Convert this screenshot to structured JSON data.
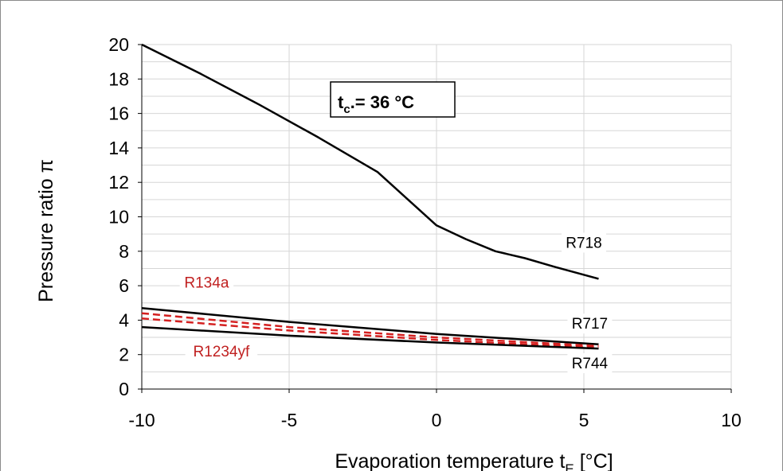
{
  "chart_data": {
    "type": "line",
    "annotation_box": {
      "main": "t",
      "subscript": "c",
      "suffix": ".= 36 °C"
    },
    "xlabel": {
      "main": "Evaporation temperature  t",
      "subscript": "E",
      "suffix": "  [°C]"
    },
    "ylabel": "Pressure ratio π",
    "xlim": [
      -10,
      10
    ],
    "ylim": [
      0,
      20
    ],
    "xticks": [
      -10,
      -5,
      0,
      5,
      10
    ],
    "yticks": [
      0,
      2,
      4,
      6,
      8,
      10,
      12,
      14,
      16,
      18,
      20
    ],
    "grid": true,
    "series": [
      {
        "name": "R718",
        "color": "#000000",
        "dashed": false,
        "points": [
          [
            -10,
            20.0
          ],
          [
            -8,
            18.3
          ],
          [
            -6,
            16.5
          ],
          [
            -4,
            14.6
          ],
          [
            -2,
            12.6
          ],
          [
            0,
            9.5
          ],
          [
            1,
            8.7
          ],
          [
            2,
            8.0
          ],
          [
            3,
            7.6
          ],
          [
            4,
            7.1
          ],
          [
            5.5,
            6.4
          ]
        ]
      },
      {
        "name": "R717",
        "color": "#000000",
        "dashed": false,
        "points": [
          [
            -10,
            4.7
          ],
          [
            -5,
            3.9
          ],
          [
            0,
            3.2
          ],
          [
            5.5,
            2.6
          ]
        ]
      },
      {
        "name": "R134a",
        "color": "#d42020",
        "dashed": true,
        "points": [
          [
            -10,
            4.4
          ],
          [
            -5,
            3.6
          ],
          [
            0,
            3.0
          ],
          [
            5.5,
            2.5
          ]
        ]
      },
      {
        "name": "R1234yf",
        "color": "#d42020",
        "dashed": true,
        "points": [
          [
            -10,
            4.1
          ],
          [
            -5,
            3.4
          ],
          [
            0,
            2.85
          ],
          [
            5.5,
            2.4
          ]
        ]
      },
      {
        "name": "R744",
        "color": "#000000",
        "dashed": false,
        "points": [
          [
            -10,
            3.6
          ],
          [
            -5,
            3.1
          ],
          [
            0,
            2.7
          ],
          [
            5.5,
            2.35
          ]
        ]
      }
    ],
    "labels": [
      {
        "text": "R718",
        "x": 5,
        "y": 8.2,
        "color": "#000000",
        "anchor": "middle"
      },
      {
        "text": "R717",
        "x": 5.2,
        "y": 3.5,
        "color": "#000000",
        "anchor": "middle"
      },
      {
        "text": "R744",
        "x": 5.2,
        "y": 1.2,
        "color": "#000000",
        "anchor": "middle"
      },
      {
        "text": "R134a",
        "x": -7.8,
        "y": 5.9,
        "color": "#c02020",
        "anchor": "middle"
      },
      {
        "text": "R1234yf",
        "x": -7.3,
        "y": 1.9,
        "color": "#c02020",
        "anchor": "middle"
      }
    ]
  }
}
